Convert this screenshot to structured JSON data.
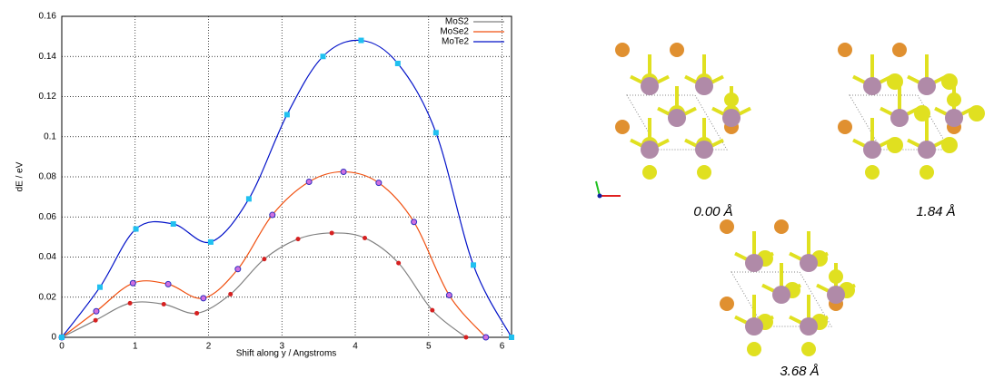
{
  "chart_data": {
    "type": "line",
    "xlabel": "Shift along y / Angstroms",
    "ylabel": "dE / eV",
    "xlim": [
      0,
      6.13
    ],
    "ylim": [
      0,
      0.16
    ],
    "xticks": [
      0,
      1,
      2,
      3,
      4,
      5,
      6
    ],
    "yticks": [
      0,
      0.02,
      0.04,
      0.06,
      0.08,
      0.1,
      0.12,
      0.14,
      0.16
    ],
    "grid": true,
    "legend": "upper right",
    "series": [
      {
        "name": "MoS2",
        "color": "#808080",
        "marker_color": "#d62020",
        "x": [
          0,
          0.46,
          0.93,
          1.39,
          1.84,
          2.3,
          2.76,
          3.22,
          3.68,
          4.13,
          4.59,
          5.05,
          5.51
        ],
        "values": [
          0,
          0.0085,
          0.017,
          0.0165,
          0.012,
          0.0215,
          0.039,
          0.049,
          0.052,
          0.0495,
          0.037,
          0.0135,
          0
        ]
      },
      {
        "name": "MoSe2",
        "color": "#f05010",
        "marker_color": "#3030c0",
        "x": [
          0,
          0.47,
          0.97,
          1.45,
          1.93,
          2.4,
          2.87,
          3.37,
          3.84,
          4.32,
          4.8,
          5.28,
          5.78
        ],
        "values": [
          0,
          0.013,
          0.027,
          0.0265,
          0.0195,
          0.034,
          0.061,
          0.0775,
          0.0825,
          0.077,
          0.0575,
          0.021,
          0
        ]
      },
      {
        "name": "MoTe2",
        "color": "#0010c8",
        "marker_color": "#20c0f0",
        "x": [
          0,
          0.52,
          1.01,
          1.52,
          2.03,
          2.55,
          3.07,
          3.56,
          4.08,
          4.58,
          5.1,
          5.61,
          6.13
        ],
        "values": [
          0,
          0.025,
          0.054,
          0.0565,
          0.0475,
          0.069,
          0.111,
          0.14,
          0.148,
          0.1365,
          0.102,
          0.036,
          0
        ]
      }
    ]
  },
  "structures": [
    {
      "caption": "0.00 Å"
    },
    {
      "caption": "1.84 Å"
    },
    {
      "caption": "3.68 Å"
    }
  ]
}
